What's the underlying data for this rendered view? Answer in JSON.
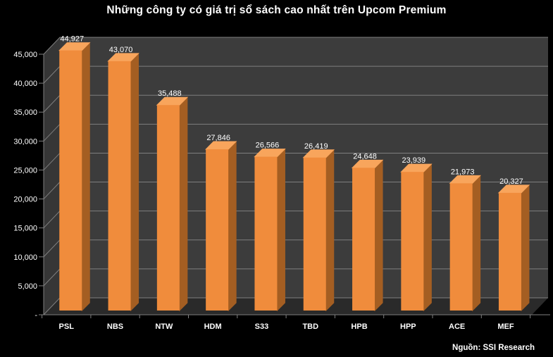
{
  "title": "Những công ty có giá trị sổ sách cao nhất trên Upcom Premium",
  "source": "Nguồn: SSI Research",
  "chart_data": {
    "type": "bar",
    "style": "3d-column",
    "title": "Những công ty có giá trị sổ sách cao nhất trên Upcom Premium",
    "categories": [
      "PSL",
      "NBS",
      "NTW",
      "HDM",
      "S33",
      "TBD",
      "HPB",
      "HPP",
      "ACE",
      "MEF"
    ],
    "values": [
      44927,
      43070,
      35488,
      27846,
      26566,
      26419,
      24648,
      23939,
      21973,
      20327
    ],
    "value_labels": [
      "44,927",
      "43,070",
      "35,488",
      "27,846",
      "26,566",
      "26,419",
      "24,648",
      "23,939",
      "21,973",
      "20,327"
    ],
    "xlabel": "",
    "ylabel": "",
    "ylim": [
      0,
      45000
    ],
    "ytick_step": 5000,
    "ytick_values": [
      0,
      5000,
      10000,
      15000,
      20000,
      25000,
      30000,
      35000,
      40000,
      45000
    ],
    "ytick_labels": [
      "-",
      "5,000",
      "10,000",
      "15,000",
      "20,000",
      "25,000",
      "30,000",
      "35,000",
      "40,000",
      "45,000"
    ],
    "grid": true,
    "legend": null,
    "source_note": "Nguồn: SSI Research",
    "colors": {
      "background": "#000000",
      "text": "#FFFFFF",
      "bar_front": "#F08C3C",
      "bar_top": "#F8A55C",
      "bar_side": "#A45E22",
      "back_wall": "#3C3C3C",
      "side_wall": "#363636",
      "floor": "#2A2A2A",
      "gridline": "#7F7F7F"
    }
  }
}
